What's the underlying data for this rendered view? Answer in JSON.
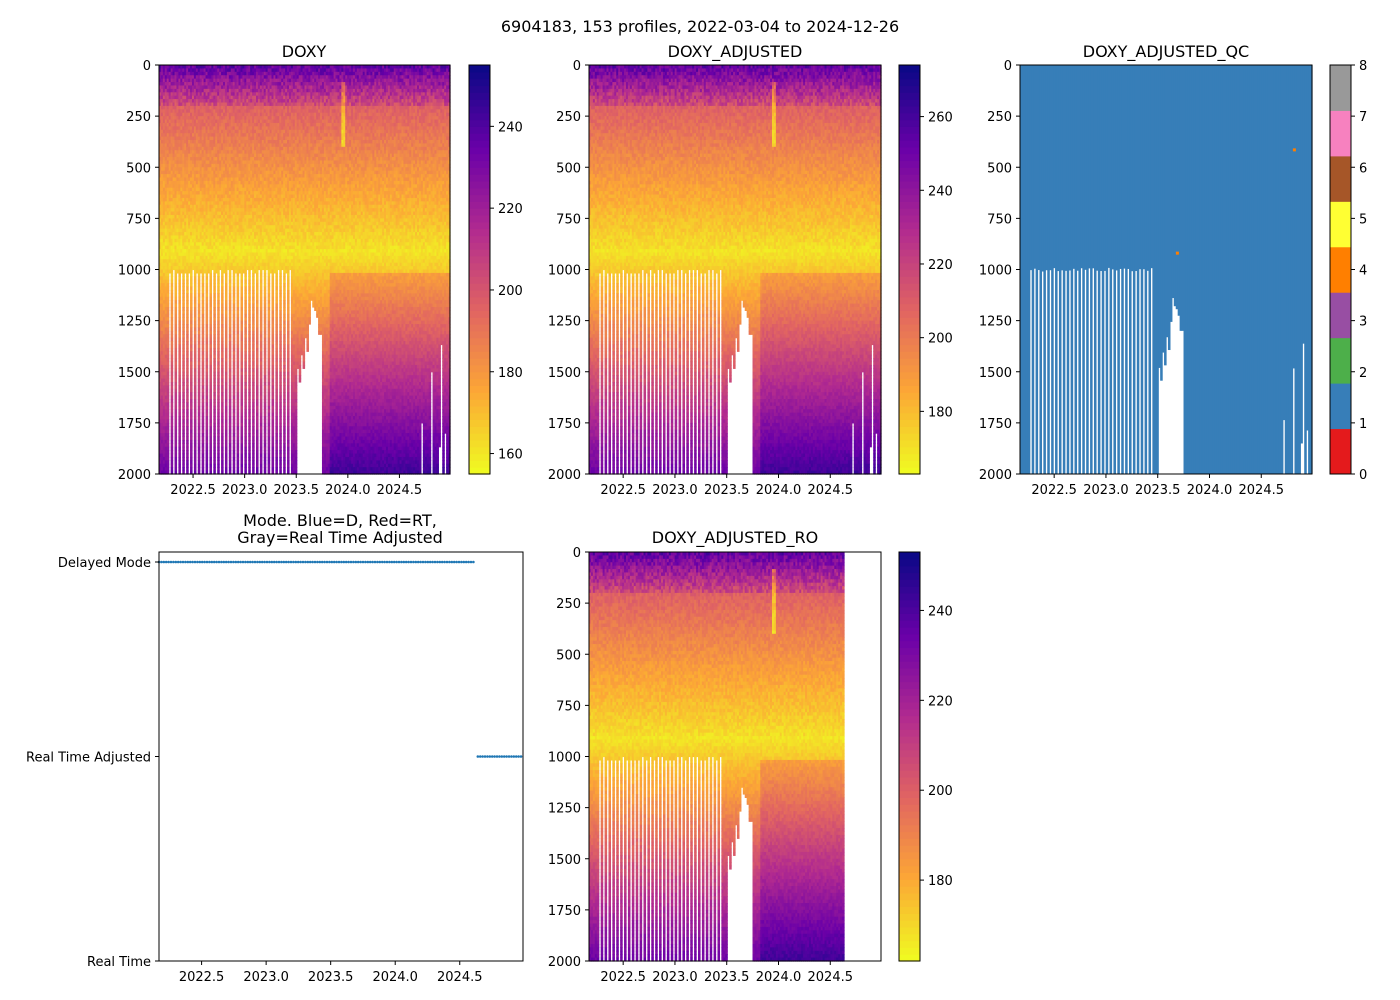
{
  "suptitle": "6904183, 153 profiles, 2022-03-04 to 2024-12-26",
  "colors": {
    "plasma": [
      "#0d0887",
      "#6a00a8",
      "#b12a90",
      "#e16462",
      "#fca636",
      "#f0f921"
    ],
    "qc": [
      "#e41a1c",
      "#377eb8",
      "#4daf4a",
      "#984ea3",
      "#ff7f00",
      "#ffff33",
      "#a65628",
      "#f781bf",
      "#999999"
    ],
    "mode_points": "#1f77b4"
  },
  "chart_data": [
    {
      "id": "doxy",
      "type": "heatmap",
      "title": "DOXY",
      "x_range": [
        2022.17,
        2024.99
      ],
      "y_range": [
        2000,
        0
      ],
      "x_ticks": [
        "2022.5",
        "2023.0",
        "2023.5",
        "2024.0",
        "2024.5"
      ],
      "y_ticks": [
        "0",
        "250",
        "500",
        "750",
        "1000",
        "1250",
        "1500",
        "1750",
        "2000"
      ],
      "colormap": "plasma_r",
      "color_range": [
        155,
        255
      ],
      "colorbar_ticks": [
        160,
        180,
        200,
        220,
        240
      ]
    },
    {
      "id": "doxy_adjusted",
      "type": "heatmap",
      "title": "DOXY_ADJUSTED",
      "x_range": [
        2022.17,
        2024.99
      ],
      "y_range": [
        2000,
        0
      ],
      "x_ticks": [
        "2022.5",
        "2023.0",
        "2023.5",
        "2024.0",
        "2024.5"
      ],
      "y_ticks": [
        "0",
        "250",
        "500",
        "750",
        "1000",
        "1250",
        "1500",
        "1750",
        "2000"
      ],
      "colormap": "plasma_r",
      "color_range": [
        163,
        274
      ],
      "colorbar_ticks": [
        180,
        200,
        220,
        240,
        260
      ]
    },
    {
      "id": "doxy_adjusted_qc",
      "type": "heatmap",
      "title": "DOXY_ADJUSTED_QC",
      "x_range": [
        2022.17,
        2024.99
      ],
      "y_range": [
        2000,
        0
      ],
      "x_ticks": [
        "2022.5",
        "2023.0",
        "2023.5",
        "2024.0",
        "2024.5"
      ],
      "y_ticks": [
        "0",
        "250",
        "500",
        "750",
        "1000",
        "1250",
        "1500",
        "1750",
        "2000"
      ],
      "colormap": "qc_categorical",
      "color_range": [
        0,
        8
      ],
      "colorbar_ticks": [
        0,
        1,
        2,
        3,
        4,
        5,
        6,
        7,
        8
      ],
      "dominant_value": 1,
      "outliers": [
        {
          "x": 2024.82,
          "depth": 415,
          "qc": 4
        },
        {
          "x": 2023.69,
          "depth": 920,
          "qc": 4
        }
      ]
    },
    {
      "id": "mode",
      "type": "scatter",
      "title_lines": [
        "Mode. Blue=D, Red=RT,",
        "Gray=Real Time Adjusted"
      ],
      "x_range": [
        2022.17,
        2024.99
      ],
      "x_ticks": [
        "2022.5",
        "2023.0",
        "2023.5",
        "2024.0",
        "2024.5"
      ],
      "y_categories": [
        "Delayed Mode",
        "Real Time Adjusted",
        "Real Time"
      ],
      "series": [
        {
          "name": "Delayed Mode",
          "x_start": 2022.17,
          "x_end": 2024.62
        },
        {
          "name": "Real Time Adjusted",
          "x_start": 2024.64,
          "x_end": 2024.99
        }
      ]
    },
    {
      "id": "doxy_adjusted_ro",
      "type": "heatmap",
      "title": "DOXY_ADJUSTED_RO",
      "x_range": [
        2022.17,
        2024.99
      ],
      "data_x_end": 2024.62,
      "y_range": [
        2000,
        0
      ],
      "x_ticks": [
        "2022.5",
        "2023.0",
        "2023.5",
        "2024.0",
        "2024.5"
      ],
      "y_ticks": [
        "0",
        "250",
        "500",
        "750",
        "1000",
        "1250",
        "1500",
        "1750",
        "2000"
      ],
      "colormap": "plasma_r",
      "color_range": [
        162,
        253
      ],
      "colorbar_ticks": [
        180,
        200,
        220,
        240
      ]
    }
  ]
}
